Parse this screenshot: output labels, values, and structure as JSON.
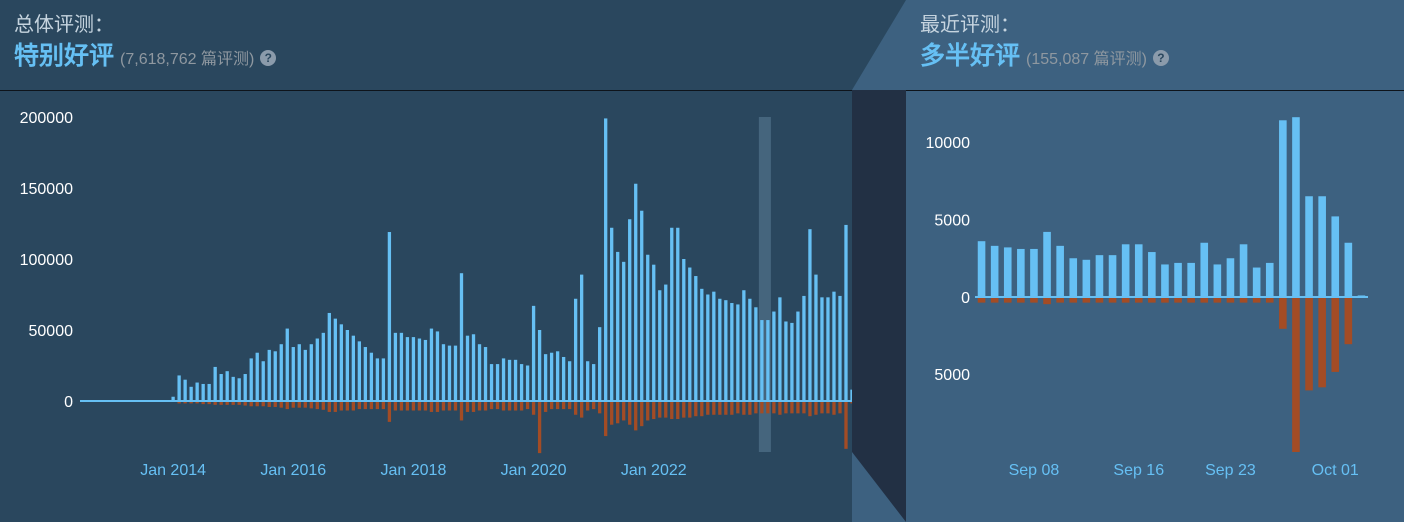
{
  "overall": {
    "label": "总体评测：",
    "summary": "特别好评",
    "count_text": "(7,618,762 篇评测)",
    "help_icon": "question-mark-icon"
  },
  "recent": {
    "label": "最近评测：",
    "summary": "多半好评",
    "count_text": "(155,087 篇评测)",
    "help_icon": "question-mark-icon"
  },
  "colors": {
    "positive": "#66c0f4",
    "negative": "#a34c25",
    "tick_x": "#66c0f4",
    "tick_y": "#ffffff",
    "highlight": "#4f6f88"
  },
  "chart_data": [
    {
      "type": "bar",
      "title": "",
      "xlabel": "",
      "ylabel": "",
      "ylim": [
        -50000,
        200000
      ],
      "y_ticks": [
        {
          "value": 0,
          "label": "0"
        },
        {
          "value": 50000,
          "label": "50000"
        },
        {
          "value": 100000,
          "label": "100000"
        },
        {
          "value": 150000,
          "label": "150000"
        },
        {
          "value": 200000,
          "label": "200000"
        }
      ],
      "x_ticks": [
        {
          "index": 15,
          "label": "Jan 2014"
        },
        {
          "index": 35,
          "label": "Jan 2016"
        },
        {
          "index": 55,
          "label": "Jan 2018"
        },
        {
          "index": 75,
          "label": "Jan 2020"
        },
        {
          "index": 95,
          "label": "Jan 2022"
        }
      ],
      "highlight_range": [
        113,
        114
      ],
      "series": [
        {
          "values": [
            300,
            300,
            300,
            300,
            300,
            300,
            300,
            300,
            300,
            300,
            300,
            300,
            300,
            300,
            300,
            3000,
            18000,
            15000,
            10000,
            13000,
            12000,
            12000,
            24000,
            19000,
            21000,
            17000,
            16000,
            19000,
            30000,
            34000,
            28000,
            36000,
            35000,
            40000,
            51000,
            38000,
            40000,
            36000,
            40000,
            44000,
            48000,
            62000,
            58000,
            54000,
            50000,
            46000,
            42000,
            38000,
            34000,
            30000,
            30000,
            119000,
            48000,
            48000,
            45000,
            45000,
            44000,
            43000,
            51000,
            49000,
            40000,
            39000,
            39000,
            90000,
            46000,
            47000,
            40000,
            38000,
            26000,
            26000,
            30000,
            29000,
            29000,
            26000,
            25000,
            67000,
            50000,
            33000,
            34000,
            35000,
            31000,
            28000,
            72000,
            89000,
            28000,
            26000,
            52000,
            199000,
            122000,
            105000,
            98000,
            128000,
            153000,
            134000,
            103000,
            96000,
            78000,
            82000,
            122000,
            122000,
            100000,
            94000,
            88000,
            79000,
            75000,
            77000,
            72000,
            71000,
            69000,
            68000,
            78000,
            72000,
            66000,
            57000,
            57000,
            63000,
            73000,
            56000,
            55000,
            63000,
            74000,
            121000,
            89000,
            73000,
            73000,
            77000,
            74000,
            124000,
            8000
          ]
        },
        {
          "values": [
            0,
            0,
            0,
            0,
            0,
            0,
            0,
            0,
            0,
            0,
            0,
            0,
            0,
            0,
            0,
            0,
            -1000,
            -1000,
            -1000,
            -1000,
            -1500,
            -1500,
            -2000,
            -2000,
            -2000,
            -2000,
            -2000,
            -2500,
            -3000,
            -3000,
            -3000,
            -3500,
            -3500,
            -4000,
            -5000,
            -4000,
            -4000,
            -4000,
            -4500,
            -5000,
            -5500,
            -7000,
            -7000,
            -6000,
            -6000,
            -6000,
            -5000,
            -5000,
            -5000,
            -5000,
            -5000,
            -14000,
            -6000,
            -6000,
            -6000,
            -6000,
            -6000,
            -6000,
            -7000,
            -7000,
            -6000,
            -6000,
            -6000,
            -13000,
            -7000,
            -7000,
            -6000,
            -6000,
            -5000,
            -5000,
            -6000,
            -6000,
            -6000,
            -6000,
            -5000,
            -9000,
            -36000,
            -7000,
            -5000,
            -5000,
            -5000,
            -5000,
            -9000,
            -11000,
            -6000,
            -5000,
            -8000,
            -24000,
            -16000,
            -15000,
            -13000,
            -16000,
            -20000,
            -17000,
            -13000,
            -12000,
            -11000,
            -11000,
            -12000,
            -12000,
            -11000,
            -11000,
            -10000,
            -10000,
            -9000,
            -9000,
            -9000,
            -9000,
            -9000,
            -8000,
            -9000,
            -9000,
            -8000,
            -8000,
            -8000,
            -8000,
            -9000,
            -8000,
            -8000,
            -8000,
            -8000,
            -10000,
            -9000,
            -8000,
            -8000,
            -9000,
            -8000,
            -33000,
            -1000
          ]
        }
      ]
    },
    {
      "type": "bar",
      "title": "",
      "xlabel": "",
      "ylabel": "",
      "ylim": [
        -10000,
        12000
      ],
      "y_ticks": [
        {
          "value": 10000,
          "label": "10000"
        },
        {
          "value": 5000,
          "label": "5000"
        },
        {
          "value": 0,
          "label": "0"
        },
        {
          "value": -5000,
          "label": "5000"
        }
      ],
      "x_ticks": [
        {
          "index": 4,
          "label": "Sep 08"
        },
        {
          "index": 12,
          "label": "Sep 16"
        },
        {
          "index": 19,
          "label": "Sep 23"
        },
        {
          "index": 27,
          "label": "Oct 01"
        }
      ],
      "series": [
        {
          "values": [
            3600,
            3300,
            3200,
            3100,
            3100,
            4200,
            3300,
            2500,
            2400,
            2700,
            2700,
            3400,
            3400,
            2900,
            2100,
            2200,
            2200,
            3500,
            2100,
            2500,
            3400,
            1900,
            2200,
            11400,
            11600,
            6500,
            6500,
            5200,
            3500,
            100
          ]
        },
        {
          "values": [
            -300,
            -300,
            -300,
            -300,
            -300,
            -400,
            -300,
            -300,
            -300,
            -300,
            -300,
            -300,
            -300,
            -300,
            -300,
            -300,
            -300,
            -300,
            -300,
            -300,
            -300,
            -300,
            -300,
            -2000,
            -10000,
            -6000,
            -5800,
            -4800,
            -3000,
            0
          ]
        }
      ]
    }
  ]
}
